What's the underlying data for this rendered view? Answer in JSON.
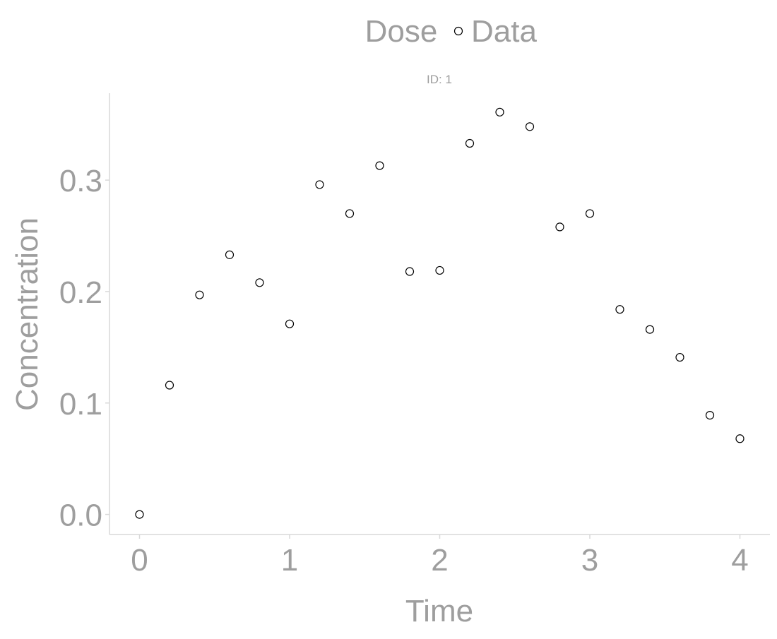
{
  "legend": {
    "title": "Dose",
    "items": [
      {
        "label": "Data",
        "shape": "open-circle",
        "color": "#000000"
      }
    ]
  },
  "facet": {
    "label": "ID: 1"
  },
  "chart_data": {
    "type": "scatter",
    "title": "",
    "xlabel": "Time",
    "ylabel": "Concentration",
    "xlim": [
      -0.2,
      4.2
    ],
    "ylim": [
      -0.018,
      0.378
    ],
    "xticks": [
      0,
      1,
      2,
      3,
      4
    ],
    "xtick_labels": [
      "0",
      "1",
      "2",
      "3",
      "4"
    ],
    "yticks": [
      0.0,
      0.1,
      0.2,
      0.3
    ],
    "ytick_labels": [
      "0.0",
      "0.1",
      "0.2",
      "0.3"
    ],
    "grid": false,
    "legend_position": "top",
    "series": [
      {
        "name": "Data",
        "marker": "open-circle",
        "color": "#000000",
        "points": [
          {
            "x": 0.0,
            "y": 0.0
          },
          {
            "x": 0.2,
            "y": 0.116
          },
          {
            "x": 0.4,
            "y": 0.197
          },
          {
            "x": 0.6,
            "y": 0.233
          },
          {
            "x": 0.8,
            "y": 0.208
          },
          {
            "x": 1.0,
            "y": 0.171
          },
          {
            "x": 1.2,
            "y": 0.296
          },
          {
            "x": 1.4,
            "y": 0.27
          },
          {
            "x": 1.6,
            "y": 0.313
          },
          {
            "x": 1.8,
            "y": 0.218
          },
          {
            "x": 2.0,
            "y": 0.219
          },
          {
            "x": 2.2,
            "y": 0.333
          },
          {
            "x": 2.4,
            "y": 0.361
          },
          {
            "x": 2.6,
            "y": 0.348
          },
          {
            "x": 2.8,
            "y": 0.258
          },
          {
            "x": 3.0,
            "y": 0.27
          },
          {
            "x": 3.2,
            "y": 0.184
          },
          {
            "x": 3.4,
            "y": 0.166
          },
          {
            "x": 3.6,
            "y": 0.141
          },
          {
            "x": 3.8,
            "y": 0.089
          },
          {
            "x": 4.0,
            "y": 0.068
          }
        ]
      }
    ]
  }
}
